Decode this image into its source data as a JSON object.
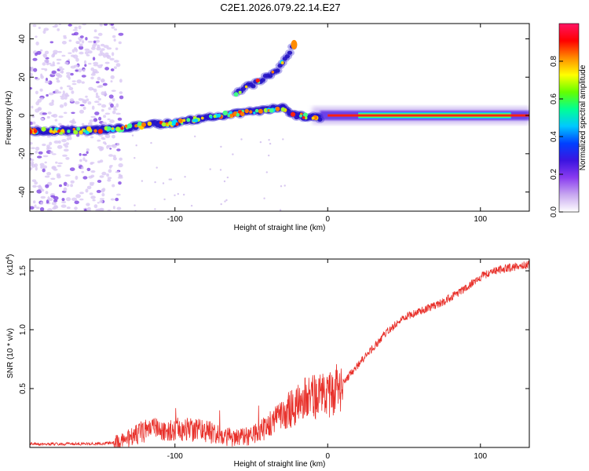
{
  "figure_title": "C2E1.2026.079.22.14.E27",
  "chart_data": [
    {
      "type": "heatmap",
      "id": "spectrogram",
      "xlabel": "Height of straight line (km)",
      "ylabel": "Frequency (Hz)",
      "xlim": [
        -195,
        132
      ],
      "ylim": [
        -50,
        48
      ],
      "xticks": [
        -100,
        0,
        100
      ],
      "yticks": [
        -40,
        -20,
        0,
        20,
        40
      ],
      "colorbar": {
        "label": "Normalized spectral amplitude",
        "ticks": [
          0.0,
          0.2,
          0.4,
          0.6,
          0.8
        ],
        "range": [
          0,
          1
        ],
        "colormap": [
          "#ffffff",
          "#c8a8f0",
          "#8a3cf0",
          "#3c14e0",
          "#0040ff",
          "#00c8ff",
          "#00ff96",
          "#64ff00",
          "#ffff00",
          "#ff8c00",
          "#ff0000",
          "#ff1464"
        ]
      },
      "ridges": [
        {
          "name": "main trace",
          "points": [
            [
              -195,
              -8
            ],
            [
              -160,
              -8
            ],
            [
              -140,
              -7
            ],
            [
              -120,
              -5
            ],
            [
              -100,
              -4
            ],
            [
              -80,
              -1
            ],
            [
              -60,
              1
            ],
            [
              -40,
              3
            ],
            [
              -30,
              4
            ],
            [
              -20,
              0
            ],
            [
              0,
              -2
            ],
            [
              10,
              -1
            ],
            [
              20,
              0
            ],
            [
              132,
              0
            ]
          ]
        },
        {
          "name": "upper branch",
          "points": [
            [
              -60,
              12
            ],
            [
              -50,
              16
            ],
            [
              -40,
              20
            ],
            [
              -32,
              25
            ],
            [
              -25,
              33
            ],
            [
              -22,
              37
            ]
          ]
        }
      ]
    },
    {
      "type": "line",
      "id": "snr",
      "xlabel": "Height of straight line (km)",
      "ylabel": "SNR (10 * v/v)",
      "multiplier": "(x10",
      "multiplier_exp": "4",
      "multiplier_close": ")",
      "xlim": [
        -195,
        132
      ],
      "ylim": [
        0,
        1.6
      ],
      "xticks": [
        -100,
        0,
        100
      ],
      "yticks": [
        "0.5",
        "1.0",
        "1.5"
      ],
      "color": "#e8302a",
      "trend": [
        [
          -195,
          0.03
        ],
        [
          -150,
          0.03
        ],
        [
          -140,
          0.04
        ],
        [
          -130,
          0.08
        ],
        [
          -120,
          0.14
        ],
        [
          -100,
          0.16
        ],
        [
          -80,
          0.14
        ],
        [
          -70,
          0.1
        ],
        [
          -60,
          0.08
        ],
        [
          -50,
          0.1
        ],
        [
          -40,
          0.17
        ],
        [
          -30,
          0.27
        ],
        [
          -20,
          0.37
        ],
        [
          -10,
          0.45
        ],
        [
          0,
          0.42
        ],
        [
          10,
          0.55
        ],
        [
          20,
          0.7
        ],
        [
          30,
          0.85
        ],
        [
          40,
          1.0
        ],
        [
          50,
          1.1
        ],
        [
          60,
          1.16
        ],
        [
          70,
          1.2
        ],
        [
          80,
          1.27
        ],
        [
          90,
          1.35
        ],
        [
          100,
          1.45
        ],
        [
          110,
          1.5
        ],
        [
          120,
          1.53
        ],
        [
          132,
          1.55
        ]
      ]
    }
  ]
}
